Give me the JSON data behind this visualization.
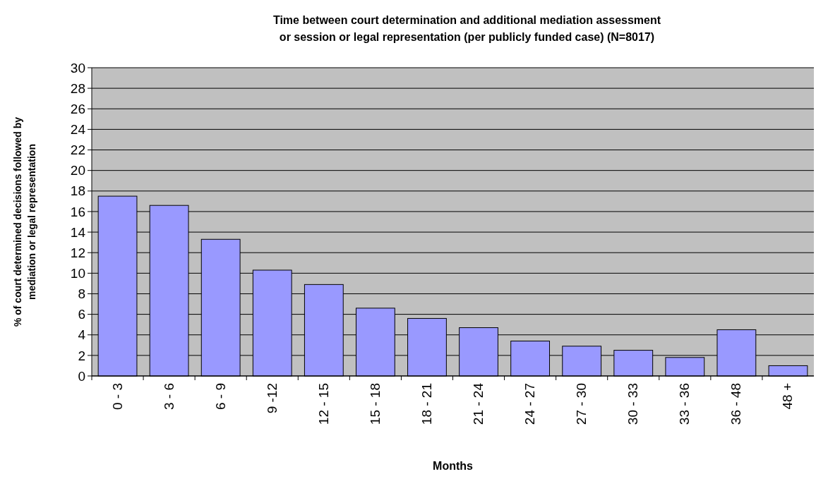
{
  "chart_data": {
    "type": "bar",
    "title": "Time between court determination and additional mediation assessment or session or legal representation (per publicly funded case) (N=8017)",
    "xlabel": "Months",
    "ylabel": "% of court determined decisions followed by mediation or legal representation",
    "categories": [
      "0 - 3",
      "3 - 6",
      "6 - 9",
      "9 -12",
      "12 - 15",
      "15 - 18",
      "18 - 21",
      "21 - 24",
      "24 - 27",
      "27 - 30",
      "30 - 33",
      "33 - 36",
      "36 - 48",
      "48 +"
    ],
    "values": [
      17.5,
      16.6,
      13.3,
      10.3,
      8.9,
      6.6,
      5.6,
      4.7,
      3.4,
      2.9,
      2.5,
      1.8,
      4.5,
      1.0
    ],
    "color": "#9999ff",
    "ylim": [
      0,
      30
    ],
    "yticks": [
      0,
      2,
      4,
      6,
      8,
      10,
      12,
      14,
      16,
      18,
      20,
      22,
      24,
      26,
      28,
      30
    ],
    "grid": "y"
  }
}
